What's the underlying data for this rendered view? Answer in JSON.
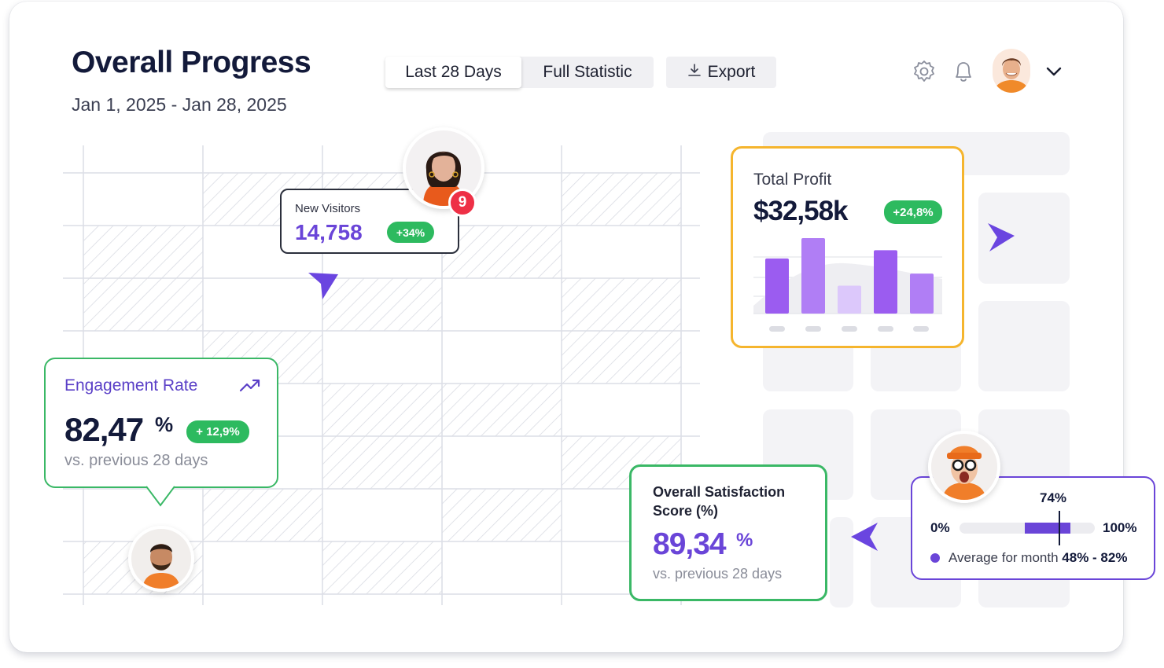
{
  "header": {
    "title": "Overall Progress",
    "date_range": "Jan 1, 2025 - Jan 28, 2025",
    "tabs": [
      {
        "label": "Last 28 Days",
        "active": true
      },
      {
        "label": "Full Statistic",
        "active": false
      }
    ],
    "export_label": "Export",
    "icons": [
      "gear-icon",
      "bell-icon",
      "chevron-down-icon",
      "download-icon"
    ]
  },
  "new_visitors": {
    "label": "New Visitors",
    "value": "14,758",
    "change": "+34%",
    "notification_count": "9"
  },
  "engagement": {
    "label": "Engagement Rate",
    "value": "82,47",
    "unit": "%",
    "change": "+ 12,9%",
    "comparison": "vs. previous 28 days"
  },
  "total_profit": {
    "label": "Total Profit",
    "value": "$32,58k",
    "change": "+24,8%",
    "bars": [
      0.73,
      1.0,
      0.37,
      0.84,
      0.53
    ]
  },
  "satisfaction": {
    "label_line1": "Overall Satisfaction",
    "label_line2": "Score (%)",
    "value": "89,34",
    "unit": "%",
    "comparison": "vs. previous 28 days"
  },
  "range": {
    "current": "74%",
    "min_label": "0%",
    "max_label": "100%",
    "legend_text": "Average for month",
    "legend_value": "48% - 82%",
    "range_start": 0.48,
    "range_end": 0.82,
    "marker": 0.74
  },
  "colors": {
    "accent_purple": "#7b4dea",
    "green": "#2dba5f",
    "orange_border": "#f5b52e",
    "navy": "#131a3a"
  }
}
